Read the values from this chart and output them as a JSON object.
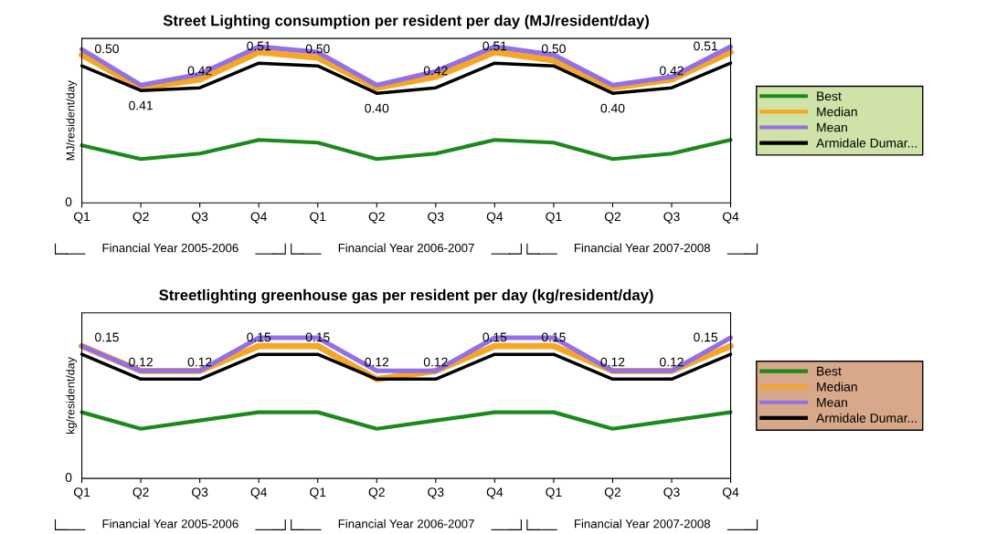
{
  "chart_data": [
    {
      "type": "line",
      "title": "Street Lighting consumption per resident per day (MJ/resident/day)",
      "ylabel": "MJ/resident/day",
      "categories": [
        "Q1",
        "Q2",
        "Q3",
        "Q4",
        "Q1",
        "Q2",
        "Q3",
        "Q4",
        "Q1",
        "Q2",
        "Q3",
        "Q4"
      ],
      "series": [
        {
          "name": "Best",
          "color": "#1a8a1a",
          "values": [
            0.21,
            0.16,
            0.18,
            0.23,
            0.22,
            0.16,
            0.18,
            0.23,
            0.22,
            0.16,
            0.18,
            0.23
          ]
        },
        {
          "name": "Median",
          "color": "#f5a623",
          "values": [
            0.54,
            0.42,
            0.45,
            0.55,
            0.53,
            0.42,
            0.46,
            0.55,
            0.52,
            0.42,
            0.45,
            0.55
          ]
        },
        {
          "name": "Mean",
          "color": "#9370e8",
          "values": [
            0.56,
            0.43,
            0.47,
            0.57,
            0.55,
            0.43,
            0.48,
            0.57,
            0.54,
            0.43,
            0.46,
            0.57
          ]
        },
        {
          "name": "Armidale Dumar...",
          "color": "#000000",
          "values": [
            0.5,
            0.41,
            0.42,
            0.51,
            0.5,
            0.4,
            0.42,
            0.51,
            0.5,
            0.4,
            0.42,
            0.51
          ],
          "value_labels": [
            "0.50",
            "0.41",
            "0.42",
            "0.51",
            "0.50",
            "0.40",
            "0.42",
            "0.51",
            "0.50",
            "0.40",
            "0.42",
            "0.51"
          ]
        }
      ],
      "ylim": [
        0,
        0.6
      ],
      "grid": false,
      "legend": "right",
      "marker": "none",
      "line_style": "solid",
      "annotations": [
        "0",
        "Financial Year 2005-2006",
        "Financial Year 2006-2007",
        "Financial Year 2007-2008"
      ]
    },
    {
      "type": "line",
      "title": "Streetlighting greenhouse gas per resident per day (kg/resident/day)",
      "ylabel": "kg/resident/day",
      "categories": [
        "Q1",
        "Q2",
        "Q3",
        "Q4",
        "Q1",
        "Q2",
        "Q3",
        "Q4",
        "Q1",
        "Q2",
        "Q3",
        "Q4"
      ],
      "series": [
        {
          "name": "Best",
          "color": "#1a8a1a",
          "values": [
            0.08,
            0.06,
            0.07,
            0.08,
            0.08,
            0.06,
            0.07,
            0.08,
            0.08,
            0.06,
            0.07,
            0.08
          ]
        },
        {
          "name": "Median",
          "color": "#f5a623",
          "values": [
            0.16,
            0.13,
            0.13,
            0.16,
            0.16,
            0.12,
            0.13,
            0.16,
            0.16,
            0.13,
            0.13,
            0.16
          ]
        },
        {
          "name": "Mean",
          "color": "#9370e8",
          "values": [
            0.16,
            0.13,
            0.13,
            0.17,
            0.17,
            0.13,
            0.13,
            0.17,
            0.17,
            0.13,
            0.13,
            0.17
          ]
        },
        {
          "name": "Armidale Dumar...",
          "color": "#000000",
          "values": [
            0.15,
            0.12,
            0.12,
            0.15,
            0.15,
            0.12,
            0.12,
            0.15,
            0.15,
            0.12,
            0.12,
            0.15
          ],
          "value_labels": [
            "0.15",
            "0.12",
            "0.12",
            "0.15",
            "0.15",
            "0.12",
            "0.12",
            "0.15",
            "0.15",
            "0.12",
            "0.12",
            "0.15"
          ]
        }
      ],
      "ylim": [
        0,
        0.2
      ],
      "grid": false,
      "legend": "right",
      "marker": "none",
      "line_style": "solid",
      "annotations": [
        "0",
        "Financial Year 2005-2006",
        "Financial Year 2006-2007",
        "Financial Year 2007-2008"
      ]
    }
  ]
}
